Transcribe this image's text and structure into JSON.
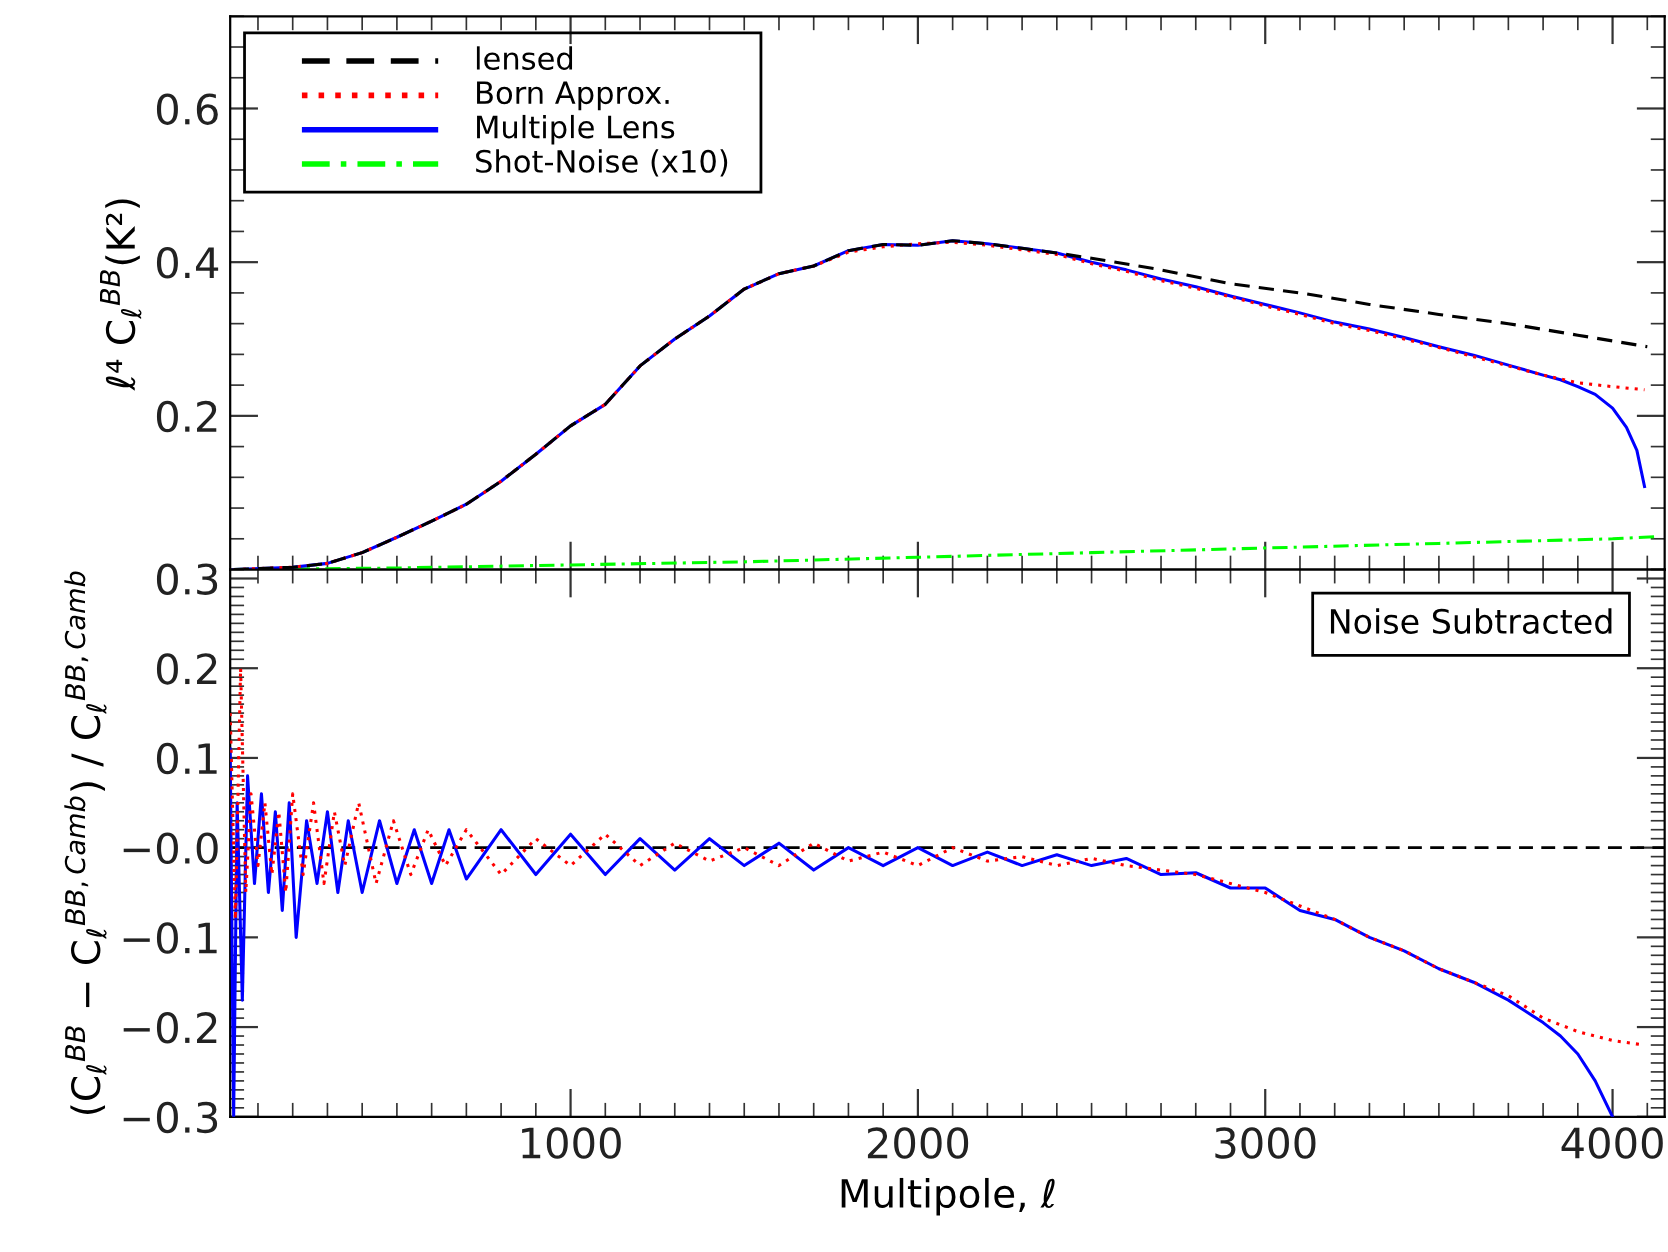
{
  "chart_data": [
    {
      "type": "line",
      "ylabel": "ℓ⁴ C$_{ℓ}$$^{BB}$(K²)",
      "xlim": [
        20,
        4150
      ],
      "ylim": [
        0,
        0.72
      ],
      "xticks": [
        1000,
        2000,
        3000,
        4000
      ],
      "yticks": [
        0.2,
        0.4,
        0.6
      ],
      "tick_labels": "y",
      "legend": "top left",
      "series": [
        {
          "name": "lensed",
          "color": "#000000",
          "line_style": "dashed",
          "x": [
            30,
            200,
            300,
            400,
            500,
            600,
            700,
            800,
            900,
            1000,
            1100,
            1200,
            1300,
            1400,
            1500,
            1600,
            1700,
            1800,
            1900,
            2000,
            2100,
            2200,
            2300,
            2400,
            2500,
            2700,
            2900,
            3100,
            3300,
            3500,
            3700,
            3900,
            4100
          ],
          "values": [
            0.0,
            0.003,
            0.008,
            0.022,
            0.042,
            0.063,
            0.085,
            0.115,
            0.15,
            0.187,
            0.215,
            0.265,
            0.3,
            0.33,
            0.365,
            0.385,
            0.395,
            0.415,
            0.423,
            0.422,
            0.428,
            0.424,
            0.418,
            0.412,
            0.405,
            0.39,
            0.372,
            0.36,
            0.345,
            0.332,
            0.32,
            0.305,
            0.29
          ]
        },
        {
          "name": "Born Approx.",
          "color": "#ff0000",
          "line_style": "dotted",
          "x": [
            30,
            200,
            300,
            400,
            500,
            600,
            700,
            800,
            900,
            1000,
            1100,
            1200,
            1300,
            1400,
            1500,
            1600,
            1700,
            1800,
            1900,
            2000,
            2100,
            2200,
            2300,
            2400,
            2500,
            2600,
            2700,
            2800,
            2900,
            3000,
            3100,
            3200,
            3300,
            3400,
            3500,
            3600,
            3700,
            3800,
            3900,
            4000,
            4092
          ],
          "values": [
            0.0,
            0.003,
            0.008,
            0.022,
            0.042,
            0.063,
            0.085,
            0.115,
            0.15,
            0.187,
            0.215,
            0.265,
            0.3,
            0.33,
            0.365,
            0.385,
            0.395,
            0.413,
            0.42,
            0.424,
            0.426,
            0.422,
            0.416,
            0.41,
            0.398,
            0.388,
            0.376,
            0.366,
            0.355,
            0.343,
            0.332,
            0.32,
            0.311,
            0.3,
            0.289,
            0.277,
            0.265,
            0.253,
            0.243,
            0.238,
            0.234
          ]
        },
        {
          "name": "Multiple Lens",
          "color": "#0000ff",
          "line_style": "solid",
          "x": [
            30,
            200,
            300,
            400,
            500,
            600,
            700,
            800,
            900,
            1000,
            1100,
            1200,
            1300,
            1400,
            1500,
            1600,
            1700,
            1800,
            1900,
            2000,
            2100,
            2200,
            2300,
            2400,
            2500,
            2600,
            2700,
            2800,
            2900,
            3000,
            3100,
            3200,
            3300,
            3400,
            3500,
            3600,
            3700,
            3800,
            3850,
            3900,
            3950,
            4000,
            4040,
            4070,
            4092
          ],
          "values": [
            0.0,
            0.003,
            0.008,
            0.022,
            0.042,
            0.063,
            0.085,
            0.115,
            0.15,
            0.187,
            0.215,
            0.265,
            0.3,
            0.33,
            0.365,
            0.385,
            0.395,
            0.415,
            0.423,
            0.422,
            0.428,
            0.424,
            0.418,
            0.412,
            0.4,
            0.39,
            0.378,
            0.368,
            0.356,
            0.345,
            0.334,
            0.322,
            0.313,
            0.302,
            0.29,
            0.279,
            0.266,
            0.253,
            0.247,
            0.238,
            0.228,
            0.21,
            0.185,
            0.155,
            0.108
          ]
        },
        {
          "name": "Shot-Noise (x10)",
          "color": "#00ff00",
          "line_style": "dashdot",
          "x": [
            30,
            500,
            1000,
            1500,
            2000,
            2500,
            3000,
            3500,
            4000,
            4130
          ],
          "values": [
            0.0,
            0.002,
            0.006,
            0.01,
            0.016,
            0.022,
            0.028,
            0.034,
            0.04,
            0.043
          ]
        }
      ]
    },
    {
      "type": "line",
      "xlabel": "Multipole, ℓ",
      "ylabel": "(C$_{ℓ}$$^{BB}$ − C$_{ℓ}$$^{BB,Camb}$) / C$_{ℓ}$$^{BB,Camb}$",
      "xlim": [
        20,
        4150
      ],
      "ylim": [
        -0.3,
        0.31
      ],
      "xticks": [
        1000,
        2000,
        3000,
        4000
      ],
      "yticks": [
        {
          "value": 0.3,
          "label": "0.3"
        },
        {
          "value": 0.2,
          "label": "0.2"
        },
        {
          "value": 0.1,
          "label": "0.1"
        },
        {
          "value": 0,
          "label": "−0.0"
        },
        {
          "value": -0.1,
          "label": "−0.1"
        },
        {
          "value": -0.2,
          "label": "−0.2"
        },
        {
          "value": -0.3,
          "label": "−0.3"
        }
      ],
      "annotations": [
        "Noise Subtracted"
      ],
      "ref_lines": [
        {
          "axis": "y",
          "value": 0,
          "color": "#000000",
          "line_style": "dashed"
        }
      ],
      "series": [
        {
          "color": "#ff0000",
          "line_style": "dotted",
          "x": [
            20,
            35,
            50,
            65,
            80,
            100,
            120,
            140,
            160,
            180,
            200,
            230,
            260,
            290,
            320,
            350,
            390,
            440,
            490,
            540,
            590,
            640,
            700,
            800,
            900,
            1000,
            1100,
            1200,
            1300,
            1400,
            1500,
            1600,
            1700,
            1800,
            1900,
            2000,
            2100,
            2200,
            2300,
            2400,
            2500,
            2600,
            2700,
            2800,
            2900,
            3000,
            3100,
            3200,
            3300,
            3400,
            3500,
            3600,
            3700,
            3800,
            3900,
            4000,
            4090
          ],
          "values": [
            0.15,
            -0.08,
            0.2,
            -0.05,
            0.06,
            -0.02,
            0.05,
            -0.03,
            0.04,
            -0.05,
            0.06,
            -0.03,
            0.05,
            -0.04,
            0.04,
            -0.02,
            0.05,
            -0.04,
            0.03,
            -0.03,
            0.02,
            -0.02,
            0.02,
            -0.03,
            0.01,
            -0.02,
            0.015,
            -0.02,
            0.005,
            -0.015,
            0.0,
            -0.02,
            0.005,
            -0.015,
            -0.005,
            -0.02,
            0.0,
            -0.015,
            -0.01,
            -0.02,
            -0.012,
            -0.02,
            -0.025,
            -0.03,
            -0.04,
            -0.05,
            -0.065,
            -0.08,
            -0.1,
            -0.115,
            -0.135,
            -0.15,
            -0.165,
            -0.19,
            -0.205,
            -0.215,
            -0.22
          ]
        },
        {
          "color": "#0000ff",
          "line_style": "solid",
          "x": [
            20,
            30,
            40,
            55,
            70,
            90,
            110,
            130,
            150,
            170,
            190,
            210,
            240,
            270,
            300,
            330,
            360,
            400,
            450,
            500,
            550,
            600,
            650,
            700,
            800,
            900,
            1000,
            1100,
            1200,
            1300,
            1400,
            1500,
            1600,
            1700,
            1800,
            1900,
            2000,
            2100,
            2200,
            2300,
            2400,
            2500,
            2600,
            2700,
            2800,
            2900,
            3000,
            3100,
            3200,
            3300,
            3400,
            3500,
            3600,
            3700,
            3800,
            3850,
            3900,
            3950,
            4000
          ],
          "values": [
            0.11,
            -0.3,
            0.05,
            -0.17,
            0.08,
            -0.04,
            0.06,
            -0.05,
            0.04,
            -0.07,
            0.05,
            -0.1,
            0.03,
            -0.04,
            0.04,
            -0.05,
            0.03,
            -0.05,
            0.03,
            -0.04,
            0.02,
            -0.04,
            0.02,
            -0.035,
            0.02,
            -0.03,
            0.015,
            -0.03,
            0.01,
            -0.025,
            0.01,
            -0.02,
            0.005,
            -0.025,
            0.0,
            -0.02,
            0.0,
            -0.02,
            -0.005,
            -0.02,
            -0.008,
            -0.02,
            -0.012,
            -0.03,
            -0.028,
            -0.045,
            -0.045,
            -0.07,
            -0.08,
            -0.1,
            -0.115,
            -0.135,
            -0.15,
            -0.17,
            -0.195,
            -0.21,
            -0.23,
            -0.26,
            -0.3
          ]
        }
      ]
    }
  ]
}
